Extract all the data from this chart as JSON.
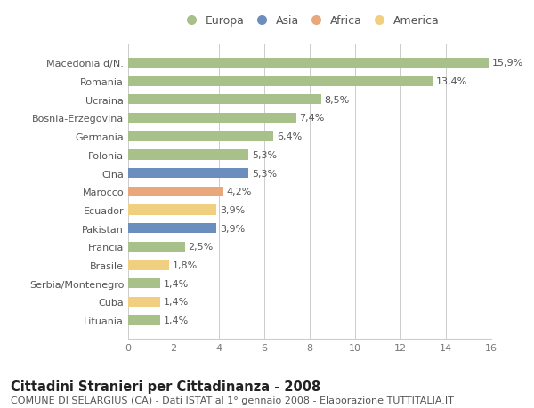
{
  "categories": [
    "Macedonia d/N.",
    "Romania",
    "Ucraina",
    "Bosnia-Erzegovina",
    "Germania",
    "Polonia",
    "Cina",
    "Marocco",
    "Ecuador",
    "Pakistan",
    "Francia",
    "Brasile",
    "Serbia/Montenegro",
    "Cuba",
    "Lituania"
  ],
  "values": [
    15.9,
    13.4,
    8.5,
    7.4,
    6.4,
    5.3,
    5.3,
    4.2,
    3.9,
    3.9,
    2.5,
    1.8,
    1.4,
    1.4,
    1.4
  ],
  "labels": [
    "15,9%",
    "13,4%",
    "8,5%",
    "7,4%",
    "6,4%",
    "5,3%",
    "5,3%",
    "4,2%",
    "3,9%",
    "3,9%",
    "2,5%",
    "1,8%",
    "1,4%",
    "1,4%",
    "1,4%"
  ],
  "continents": [
    "Europa",
    "Europa",
    "Europa",
    "Europa",
    "Europa",
    "Europa",
    "Asia",
    "Africa",
    "America",
    "Asia",
    "Europa",
    "America",
    "Europa",
    "America",
    "Europa"
  ],
  "continent_colors": {
    "Europa": "#a8c08a",
    "Asia": "#6b8ebf",
    "Africa": "#e8a87c",
    "America": "#f0d080"
  },
  "legend_order": [
    "Europa",
    "Asia",
    "Africa",
    "America"
  ],
  "xlim": [
    0,
    16
  ],
  "xticks": [
    0,
    2,
    4,
    6,
    8,
    10,
    12,
    14,
    16
  ],
  "title": "Cittadini Stranieri per Cittadinanza - 2008",
  "subtitle": "COMUNE DI SELARGIUS (CA) - Dati ISTAT al 1° gennaio 2008 - Elaborazione TUTTITALIA.IT",
  "background_color": "#ffffff",
  "grid_color": "#cccccc",
  "bar_height": 0.55,
  "title_fontsize": 10.5,
  "subtitle_fontsize": 8,
  "label_fontsize": 8,
  "tick_fontsize": 8,
  "legend_fontsize": 9
}
